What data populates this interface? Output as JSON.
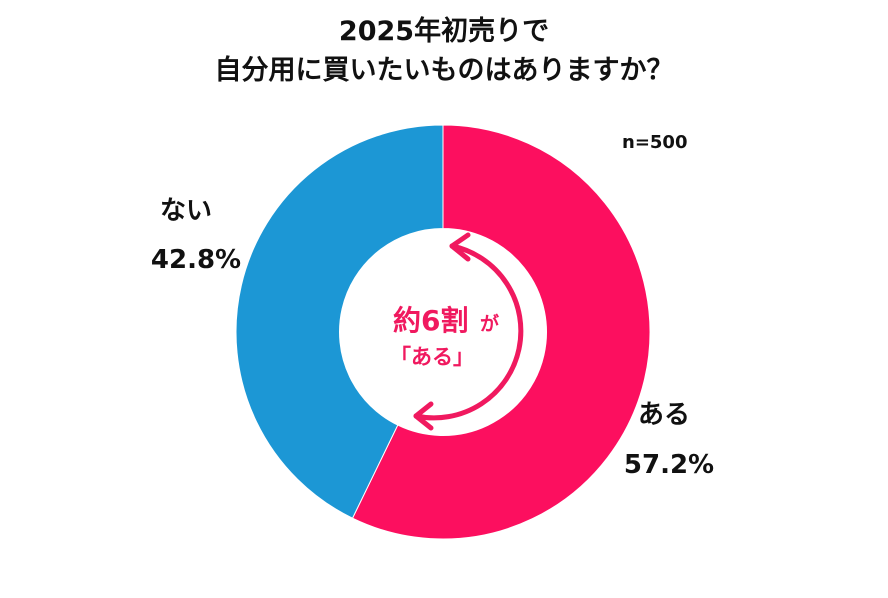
{
  "chart_data": {
    "type": "pie",
    "title": [
      "2025年初売りで",
      "自分用に買いたいものはありますか？"
    ],
    "sample_size": "n=500",
    "start_angle_deg": 0,
    "direction": "clockwise",
    "inner_radius_ratio": 0.5,
    "slices": [
      {
        "name": "ある",
        "value": 57.2,
        "label_value": "57.2%",
        "color": "#fc0f5f"
      },
      {
        "name": "ない",
        "value": 42.8,
        "label_value": "42.8%",
        "color": "#1c97d5"
      }
    ],
    "center_annotation": {
      "main": "約6割",
      "particle": "が",
      "sub": "「ある」",
      "color": "#f0195f"
    }
  }
}
